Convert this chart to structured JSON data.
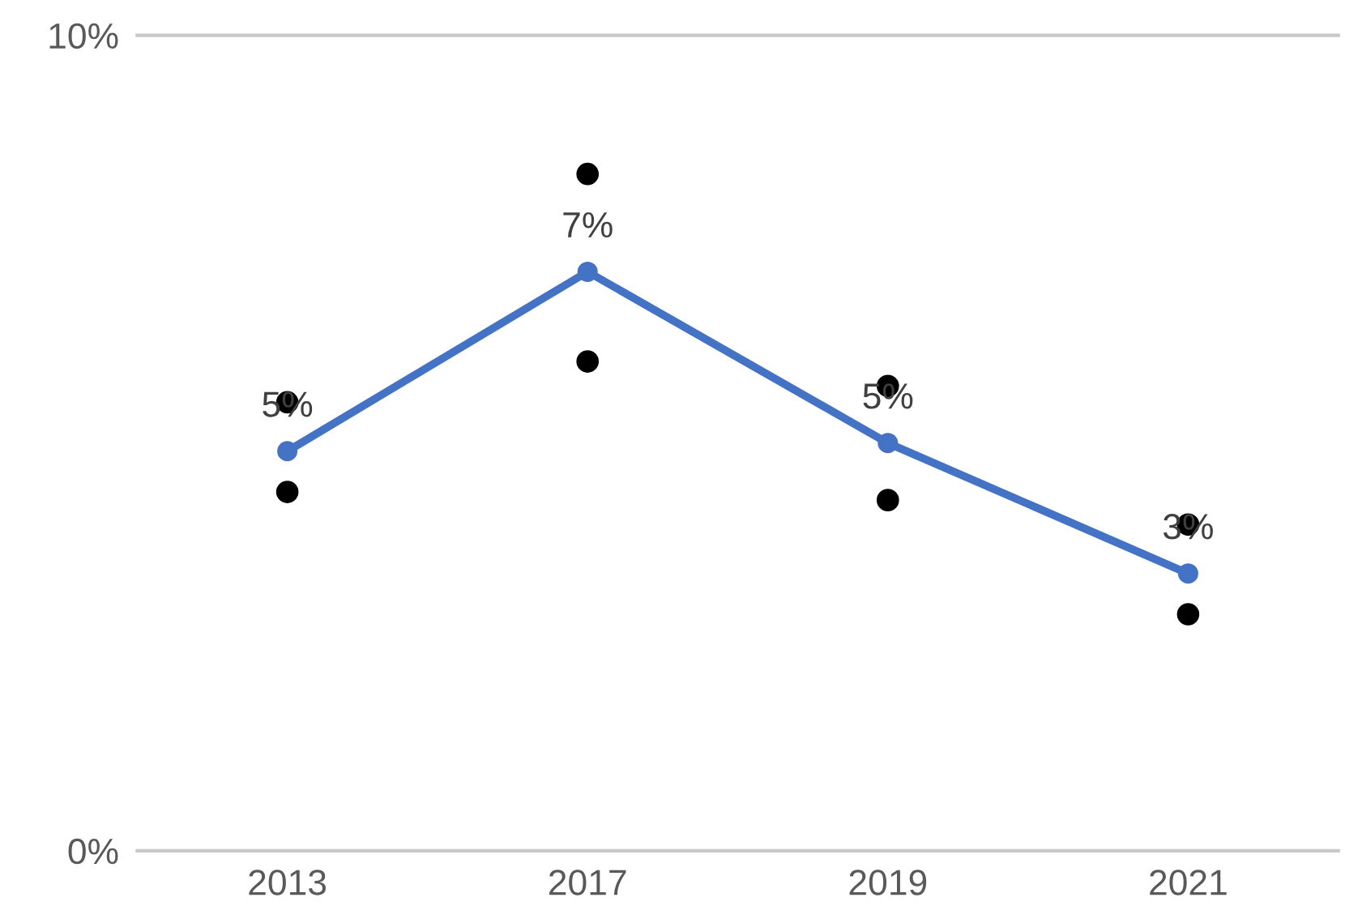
{
  "chart_data": {
    "type": "line",
    "categories": [
      "2013",
      "2017",
      "2019",
      "2021"
    ],
    "series": [
      {
        "color": "#4472c4",
        "values": [
          4.9,
          7.1,
          5.0,
          3.4
        ],
        "value_labels": [
          "5%",
          "7%",
          "5%",
          "3%"
        ],
        "marker": "circle"
      },
      {
        "type": "scatter",
        "color": "#000000",
        "values": [
          5.5,
          8.3,
          5.7,
          4.0
        ],
        "marker": "circle"
      },
      {
        "type": "scatter",
        "color": "#000000",
        "values": [
          4.4,
          6.0,
          4.3,
          2.9
        ],
        "marker": "circle"
      }
    ],
    "ylim": [
      0,
      10
    ],
    "yticks": [
      {
        "value": 0,
        "label": "0%"
      },
      {
        "value": 10,
        "label": "10%"
      }
    ],
    "legend": false
  }
}
